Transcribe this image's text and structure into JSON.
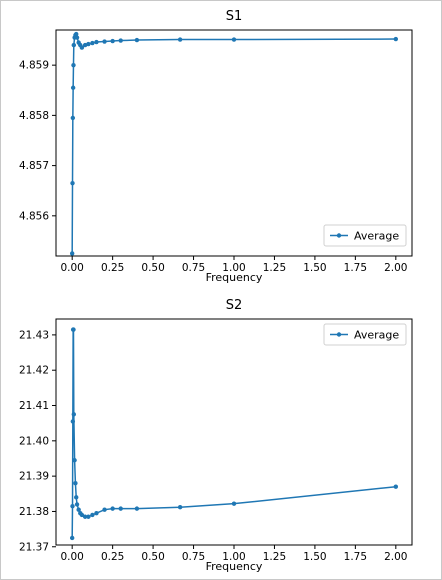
{
  "chart_data": [
    {
      "type": "line",
      "title": "S1",
      "xlabel": "Frequency",
      "ylabel": "",
      "xlim": [
        -0.1,
        2.1
      ],
      "ylim": [
        4.8552,
        4.8597
      ],
      "xticks": [
        "0.00",
        "0.25",
        "0.50",
        "0.75",
        "1.00",
        "1.25",
        "1.50",
        "1.75",
        "2.00"
      ],
      "yticks": [
        "4.856",
        "4.857",
        "4.858",
        "4.859"
      ],
      "legend_position": "lower-right",
      "grid": false,
      "series": [
        {
          "name": "Average",
          "color": "#1f77b4",
          "x": [
            0.0,
            0.002,
            0.004,
            0.006,
            0.008,
            0.01,
            0.015,
            0.02,
            0.025,
            0.03,
            0.04,
            0.05,
            0.06,
            0.08,
            0.1,
            0.125,
            0.15,
            0.2,
            0.25,
            0.3,
            0.4,
            0.667,
            1.0,
            2.0
          ],
          "y": [
            4.85525,
            4.85665,
            4.85795,
            4.85855,
            4.859,
            4.8594,
            4.85955,
            4.8596,
            4.85962,
            4.85955,
            4.85945,
            4.8594,
            4.85935,
            4.8594,
            4.85942,
            4.85944,
            4.85946,
            4.85947,
            4.85948,
            4.85949,
            4.8595,
            4.85951,
            4.85951,
            4.85952
          ]
        }
      ]
    },
    {
      "type": "line",
      "title": "S2",
      "xlabel": "Frequency",
      "ylabel": "",
      "xlim": [
        -0.1,
        2.1
      ],
      "ylim": [
        21.3705,
        21.4345
      ],
      "xticks": [
        "0.00",
        "0.25",
        "0.50",
        "0.75",
        "1.00",
        "1.25",
        "1.50",
        "1.75",
        "2.00"
      ],
      "yticks": [
        "21.37",
        "21.38",
        "21.39",
        "21.40",
        "21.41",
        "21.42",
        "21.43"
      ],
      "legend_position": "upper-right",
      "grid": false,
      "series": [
        {
          "name": "Average",
          "color": "#1f77b4",
          "x": [
            0.0,
            0.002,
            0.004,
            0.006,
            0.008,
            0.01,
            0.015,
            0.02,
            0.025,
            0.03,
            0.04,
            0.05,
            0.06,
            0.08,
            0.1,
            0.125,
            0.15,
            0.2,
            0.25,
            0.3,
            0.4,
            0.667,
            1.0,
            2.0
          ],
          "y": [
            21.3725,
            21.3815,
            21.4055,
            21.4315,
            21.4315,
            21.4075,
            21.3945,
            21.388,
            21.384,
            21.382,
            21.3805,
            21.3795,
            21.379,
            21.3785,
            21.3785,
            21.379,
            21.3795,
            21.3805,
            21.3808,
            21.3808,
            21.3808,
            21.3812,
            21.3822,
            21.387
          ]
        }
      ]
    }
  ]
}
